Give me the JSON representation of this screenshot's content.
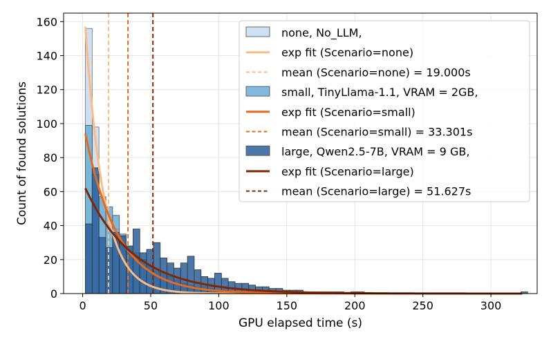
{
  "chart_data": {
    "type": "histogram",
    "xlabel": "GPU elapsed time (s)",
    "ylabel": "Count of found solutions",
    "xlim": [
      -14,
      334
    ],
    "ylim": [
      0,
      165
    ],
    "xticks": [
      0,
      50,
      100,
      150,
      200,
      250,
      300
    ],
    "yticks": [
      0,
      20,
      40,
      60,
      80,
      100,
      120,
      140,
      160
    ],
    "grid": true,
    "legend_position": "top-right",
    "bin_start": 2.0,
    "bin_width": 5.0,
    "series": [
      {
        "name": "none",
        "legend": "none, No_LLM,",
        "color": "#c6dbef",
        "edge": "#6e6e6e",
        "counts": [
          156,
          98,
          56,
          43,
          38,
          31,
          26,
          22,
          18,
          15,
          13,
          10,
          8,
          6,
          5,
          3,
          3,
          2,
          2,
          1,
          1,
          1,
          1,
          0,
          0,
          0,
          0,
          0,
          0,
          0,
          0,
          0,
          0,
          0,
          0,
          0,
          0,
          0,
          0,
          0,
          0,
          0,
          0,
          0,
          0,
          0,
          0,
          0,
          0,
          0,
          0,
          0,
          0,
          0,
          0,
          0,
          0,
          0,
          0,
          0,
          0,
          0,
          0,
          0,
          0
        ]
      },
      {
        "name": "small",
        "legend": "small, TinyLlama-1.1, VRAM = 2GB,",
        "color": "#6baed6",
        "edge": "#4a4a4a",
        "counts": [
          99,
          70,
          57,
          51,
          46,
          35,
          28,
          24,
          20,
          16,
          13,
          12,
          10,
          8,
          6,
          5,
          4,
          4,
          3,
          2,
          2,
          1,
          1,
          1,
          1,
          0,
          1,
          0,
          0,
          0,
          0,
          0,
          0,
          0,
          0,
          0,
          0,
          0,
          0,
          0,
          0,
          0,
          0,
          0,
          0,
          0,
          0,
          0,
          0,
          0,
          0,
          0,
          0,
          0,
          0,
          0,
          0,
          0,
          0,
          0,
          0,
          0,
          0,
          0,
          0
        ]
      },
      {
        "name": "large",
        "legend": "large, Qwen2.5-7B, VRAM = 9 GB,",
        "color": "#2d5f9a",
        "edge": "#333333",
        "counts": [
          41,
          74,
          33,
          27,
          36,
          34,
          28,
          38,
          24,
          26,
          30,
          21,
          18,
          15,
          18,
          22,
          14,
          10,
          9,
          12,
          9,
          7,
          6,
          6,
          5,
          4,
          4,
          3,
          3,
          2,
          2,
          2,
          1,
          1,
          1,
          1,
          1,
          1,
          0,
          1,
          1,
          0,
          0,
          0,
          0,
          0,
          0,
          0,
          0,
          0,
          0,
          0,
          0,
          0,
          0,
          0,
          0,
          0,
          0,
          0,
          0,
          0,
          0,
          0,
          1
        ]
      }
    ],
    "fits": [
      {
        "name": "exp fit (Scenario=none)",
        "type": "exponential",
        "amplitude": 157,
        "decay_time": 13.5,
        "x_start": 2,
        "x_end": 323,
        "color": "#fdbb84",
        "style": "solid"
      },
      {
        "name": "exp fit (Scenario=small)",
        "type": "exponential",
        "amplitude": 94,
        "decay_time": 24.0,
        "x_start": 2,
        "x_end": 323,
        "color": "#e6691d",
        "style": "solid"
      },
      {
        "name": "exp fit (Scenario=large)",
        "type": "exponential",
        "amplitude": 62,
        "decay_time": 36.0,
        "x_start": 2,
        "x_end": 323,
        "color": "#7f2704",
        "style": "solid"
      }
    ],
    "means": [
      {
        "name": "mean (Scenario=none) = 19.000s",
        "value": 19.0,
        "color": "#fdbb84",
        "style": "dashed"
      },
      {
        "name": "mean (Scenario=small) = 33.301s",
        "value": 33.301,
        "color": "#e6691d",
        "style": "dashed"
      },
      {
        "name": "mean (Scenario=large) = 51.627s",
        "value": 51.627,
        "color": "#7f2704",
        "style": "dashed"
      }
    ],
    "legend": [
      {
        "kind": "patch",
        "label": "none, No_LLM,",
        "color": "#c6dbef"
      },
      {
        "kind": "line",
        "label": "exp fit (Scenario=none)",
        "color": "#fdbb84"
      },
      {
        "kind": "dash",
        "label": "mean (Scenario=none) = 19.000s",
        "color": "#fdbb84"
      },
      {
        "kind": "patch",
        "label": "small, TinyLlama-1.1, VRAM = 2GB,",
        "color": "#6baed6"
      },
      {
        "kind": "line",
        "label": "exp fit (Scenario=small)",
        "color": "#e6691d"
      },
      {
        "kind": "dash",
        "label": "mean (Scenario=small) = 33.301s",
        "color": "#e6691d"
      },
      {
        "kind": "patch",
        "label": "large, Qwen2.5-7B, VRAM = 9 GB,",
        "color": "#2d5f9a"
      },
      {
        "kind": "line",
        "label": "exp fit (Scenario=large)",
        "color": "#7f2704"
      },
      {
        "kind": "dash",
        "label": "mean (Scenario=large) = 51.627s",
        "color": "#7f2704"
      }
    ]
  }
}
